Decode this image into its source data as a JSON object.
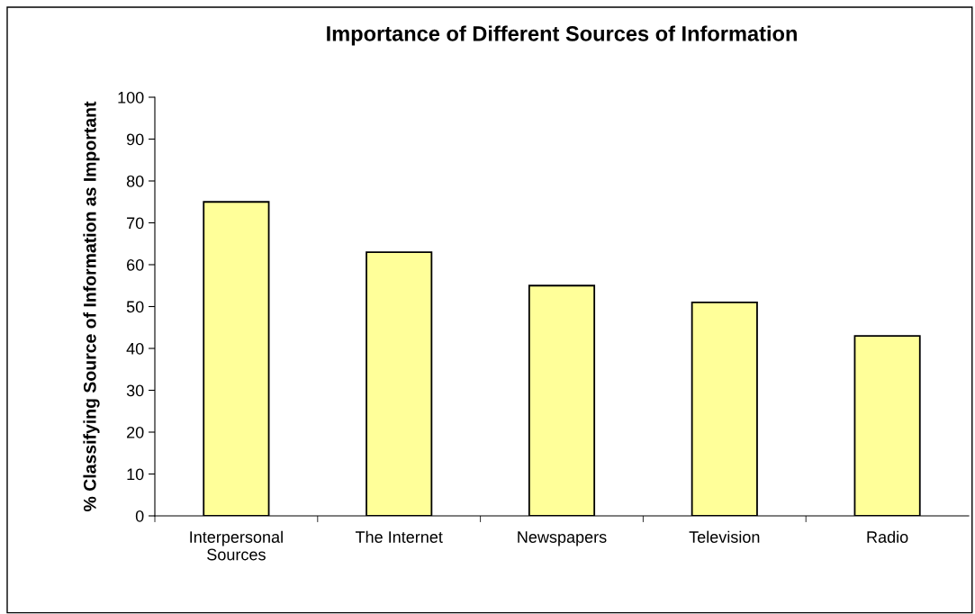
{
  "chart_data": {
    "type": "bar",
    "title": "Importance of Different Sources of Information",
    "ylabel": "% Classifying Source of Information as Important",
    "categories": [
      "Interpersonal\nSources",
      "The Internet",
      "Newspapers",
      "Television",
      "Radio"
    ],
    "values": [
      75,
      63,
      55,
      51,
      43
    ],
    "color": "#ffff99",
    "ylim": [
      0,
      100
    ],
    "yticks": [
      0,
      10,
      20,
      30,
      40,
      50,
      60,
      70,
      80,
      90,
      100
    ],
    "grid": false,
    "legend": false
  }
}
